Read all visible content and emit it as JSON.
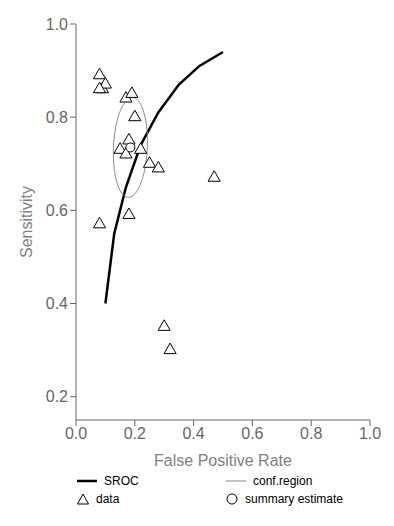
{
  "chart_data": {
    "type": "scatter",
    "xlabel": "False Positive Rate",
    "ylabel": "Sensitivity",
    "xlim": [
      0.0,
      1.0
    ],
    "ylim": [
      0.15,
      1.0
    ],
    "xticks": [
      {
        "value": 0.0,
        "label": "0.0"
      },
      0.2,
      0.4,
      0.6,
      0.8,
      {
        "value": 1.0,
        "label": "1.0"
      }
    ],
    "yticks": [
      0.2,
      0.4,
      0.6,
      0.8,
      {
        "value": 1.0,
        "label": "1.0"
      }
    ],
    "grid": false,
    "legend": "bottom",
    "series": [
      {
        "name": "SROC",
        "type": "line",
        "color": "black",
        "x": [
          0.1,
          0.13,
          0.17,
          0.22,
          0.28,
          0.35,
          0.42,
          0.5
        ],
        "values": [
          0.4,
          0.55,
          0.65,
          0.74,
          0.81,
          0.87,
          0.91,
          0.94
        ]
      },
      {
        "name": "conf.region",
        "type": "ellipse",
        "color": "#888888",
        "center": [
          0.185,
          0.735
        ],
        "width": 0.115,
        "height": 0.215,
        "angle": -5
      },
      {
        "name": "data",
        "type": "scatter",
        "marker": "triangle",
        "color": "black",
        "x": [
          0.08,
          0.09,
          0.1,
          0.08,
          0.17,
          0.19,
          0.2,
          0.18,
          0.22,
          0.15,
          0.17,
          0.25,
          0.28,
          0.08,
          0.18,
          0.47,
          0.3,
          0.32
        ],
        "values": [
          0.89,
          0.86,
          0.87,
          0.86,
          0.84,
          0.85,
          0.8,
          0.75,
          0.73,
          0.73,
          0.72,
          0.7,
          0.69,
          0.57,
          0.59,
          0.67,
          0.35,
          0.3
        ]
      },
      {
        "name": "summary estimate",
        "type": "scatter",
        "marker": "circle",
        "color": "black",
        "x": [
          0.185
        ],
        "values": [
          0.735
        ]
      }
    ]
  }
}
